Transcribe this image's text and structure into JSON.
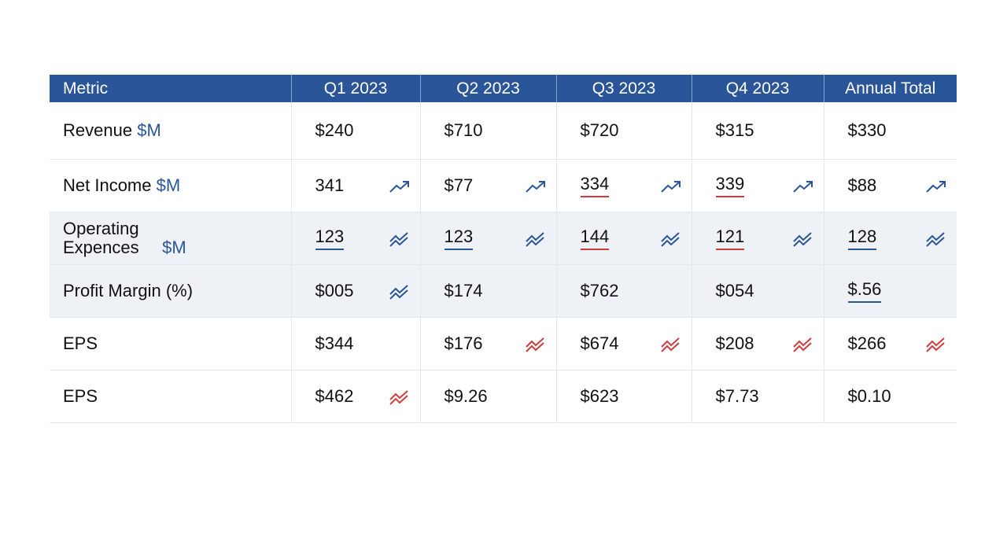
{
  "table": {
    "columns": [
      "Metric",
      "Q1 2023",
      "Q2 2023",
      "Q3 2023",
      "Q4 2023",
      "Annual Total"
    ],
    "rows": [
      {
        "label": "Revenue",
        "unit": "$M",
        "cells": [
          "$240",
          "$710",
          "$720",
          "$315",
          "$330"
        ]
      },
      {
        "label": "Net Income",
        "unit": "$M",
        "cells": [
          "341",
          "$77",
          "334",
          "339",
          "$88"
        ]
      },
      {
        "label": "Operating Expences",
        "unit": "$M",
        "cells": [
          "123",
          "123",
          "144",
          "121",
          "128"
        ]
      },
      {
        "label": "Profit Margin (%)",
        "cells": [
          "$005",
          "$174",
          "$762",
          "$054",
          "$.56"
        ]
      },
      {
        "label": "EPS",
        "cells": [
          "$344",
          "$176",
          "$674",
          "$208",
          "$266"
        ]
      },
      {
        "label": "EPS",
        "cells": [
          "$462",
          "$9.26",
          "$623",
          "$7.73",
          "$0.10"
        ]
      }
    ]
  }
}
